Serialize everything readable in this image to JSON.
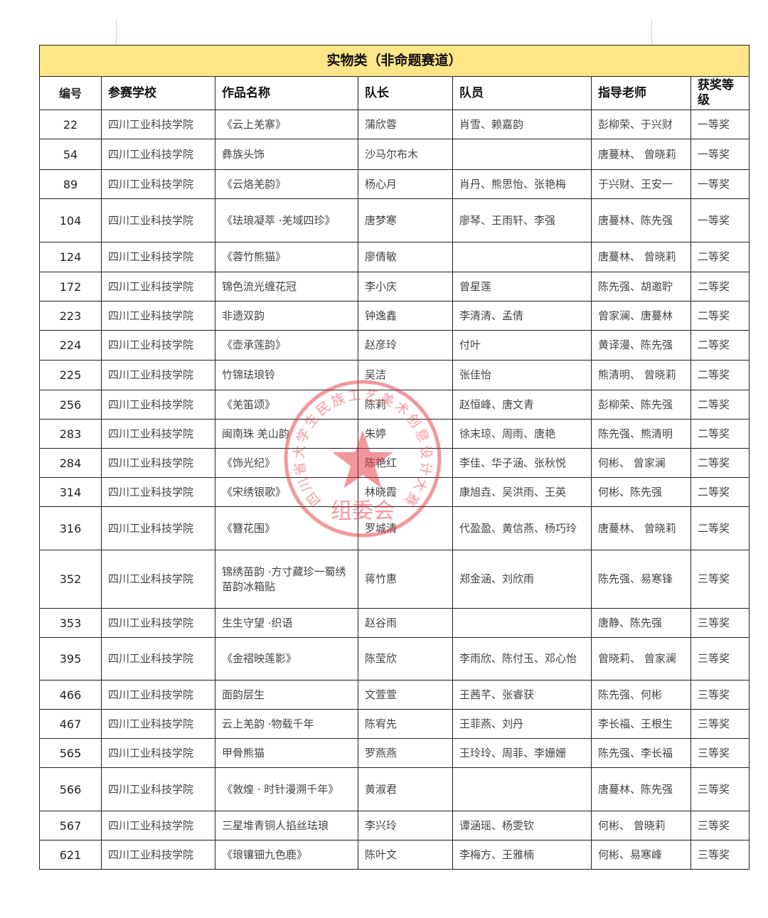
{
  "title": "实物类（非命题赛道）",
  "columns": [
    "编号",
    "参赛学校",
    "作品名称",
    "队长",
    "队员",
    "指导老师",
    "获奖等级"
  ],
  "rows": [
    [
      "22",
      "四川工业科技学院",
      "《云上羌寨》",
      "蒲欣蓉",
      "肖雪、赖嘉韵",
      "彭柳荣、于兴财",
      "一等奖"
    ],
    [
      "54",
      "四川工业科技学院",
      "彝族头饰",
      "沙马尔布木",
      "",
      "唐蔓林、 曾晓莉",
      "一等奖"
    ],
    [
      "89",
      "四川工业科技学院",
      "《云烙羌韵》",
      "杨心月",
      "肖丹、熊思怡、张艳梅",
      "于兴财、王安一",
      "一等奖"
    ],
    [
      "104",
      "四川工业科技学院",
      "《珐琅凝萃 ·羌域四珍》",
      "唐梦寒",
      "廖琴、王雨轩、李强",
      "唐蔓林、陈先强",
      "一等奖"
    ],
    [
      "124",
      "四川工业科技学院",
      "《蓉竹熊猫》",
      "廖倩敏",
      "",
      "唐蔓林、 曾晓莉",
      "二等奖"
    ],
    [
      "172",
      "四川工业科技学院",
      "锦色流光缠花冠",
      "李小庆",
      "曾星莲",
      "陈先强、胡邀聍",
      "二等奖"
    ],
    [
      "223",
      "四川工业科技学院",
      "非遗双韵",
      "钟逸鑫",
      "李清清、孟倩",
      "曾家澜、唐蔓林",
      "二等奖"
    ],
    [
      "224",
      "四川工业科技学院",
      "《壶承莲韵》",
      "赵彦玲",
      "付叶",
      "黄译漫、陈先强",
      "二等奖"
    ],
    [
      "225",
      "四川工业科技学院",
      "竹锦珐琅铃",
      "吴洁",
      "张佳怡",
      "熊清明、 曾晓莉",
      "二等奖"
    ],
    [
      "256",
      "四川工业科技学院",
      "《羌笛颂》",
      "陈莉",
      "赵恒峰、唐文青",
      "彭柳荣、陈先强",
      "二等奖"
    ],
    [
      "283",
      "四川工业科技学院",
      "闽南珠 羌山韵",
      "朱婷",
      "徐末琼、周雨、唐艳",
      "陈先强、熊清明",
      "二等奖"
    ],
    [
      "284",
      "四川工业科技学院",
      "《饰光纪》",
      "陈艳红",
      "李佳、华子涵、张秋悦",
      "何彬、 曾家澜",
      "二等奖"
    ],
    [
      "314",
      "四川工业科技学院",
      "《宋绣银歌》",
      "林晓霞",
      "康旭垚、吴洪雨、王英",
      "何彬、陈先强",
      "二等奖"
    ],
    [
      "316",
      "四川工业科技学院",
      "《簪花围》",
      "罗城清",
      "代盈盈、黄信燕、杨巧玲",
      "唐蔓林、 曾晓莉",
      "二等奖"
    ],
    [
      "352",
      "四川工业科技学院",
      "锦绣苗韵 ·方寸藏珍一蜀绣苗韵冰箱贴",
      "蒋竹惠",
      "郑金涵、刘欣雨",
      "陈先强、易寒锋",
      "三等奖"
    ],
    [
      "353",
      "四川工业科技学院",
      "生生守望 ·织语",
      "赵谷雨",
      "",
      "唐静、陈先强",
      "三等奖"
    ],
    [
      "395",
      "四川工业科技学院",
      "《金褶映莲影》",
      "陈莹欣",
      "李雨欣、陈付玉、邓心怡",
      "曾晓莉、 曾家澜",
      "三等奖"
    ],
    [
      "466",
      "四川工业科技学院",
      "面韵层生",
      "文萱萱",
      "王茜芊、张睿获",
      "陈先强、何彬",
      "三等奖"
    ],
    [
      "467",
      "四川工业科技学院",
      "云上羌韵 ·物载千年",
      "陈宥先",
      "王菲燕、刘丹",
      "李长福、王根生",
      "三等奖"
    ],
    [
      "565",
      "四川工业科技学院",
      "甲骨熊猫",
      "罗燕燕",
      "王玲玲、周菲、李姗姗",
      "陈先强、李长福",
      "三等奖"
    ],
    [
      "566",
      "四川工业科技学院",
      "《敦煌 · 时针漫溯千年》",
      "黄淑君",
      "",
      "唐蔓林、陈先强",
      "三等奖"
    ],
    [
      "567",
      "四川工业科技学院",
      "三星堆青铜人掐丝珐琅",
      "李兴玲",
      "谭涵瑶、杨雯钦",
      "何彬、 曾晓莉",
      "三等奖"
    ],
    [
      "621",
      "四川工业科技学院",
      "《琅镶钿九色鹿》",
      "陈叶文",
      "李梅方、王雅楠",
      "何彬、易寒峰",
      "三等奖"
    ]
  ],
  "stamp": {
    "ring_text": "四川省大学生民族工艺美术创意设计大赛",
    "center_text": "组委会",
    "color": "#e0303a"
  },
  "colors": {
    "title_bg": "#fde588",
    "border": "#222222"
  }
}
